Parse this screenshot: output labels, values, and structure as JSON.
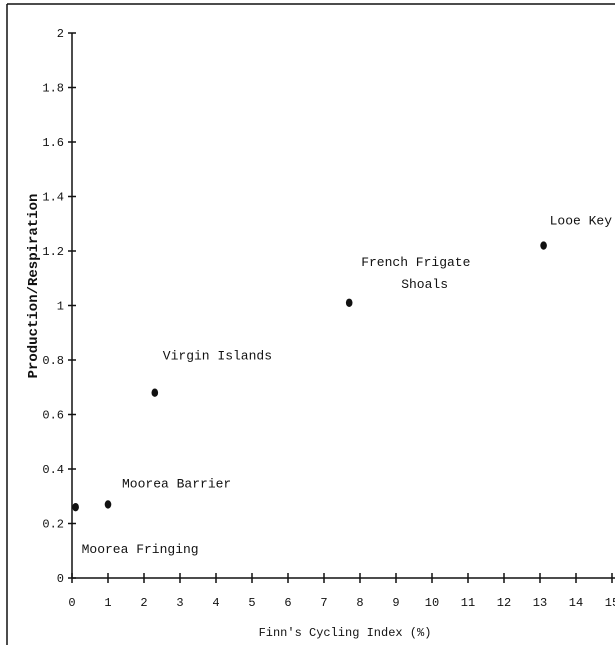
{
  "chart_data": {
    "type": "scatter",
    "title": "",
    "xlabel": "Finn's Cycling Index (%)",
    "ylabel": "Production/Respiration",
    "xlim": [
      0,
      15
    ],
    "ylim": [
      0,
      2
    ],
    "x_ticks": [
      "0",
      "1",
      "2",
      "3",
      "4",
      "5",
      "6",
      "7",
      "8",
      "9",
      "10",
      "11",
      "12",
      "13",
      "14",
      "15"
    ],
    "y_ticks": [
      "0",
      "0.2",
      "0.4",
      "0.6",
      "0.8",
      "1",
      "1.2",
      "1.4",
      "1.6",
      "1.8",
      "2"
    ],
    "points": [
      {
        "x": 0.1,
        "y": 0.26,
        "label": "Moorea Fringing"
      },
      {
        "x": 1.0,
        "y": 0.27,
        "label": "Moorea Barrier"
      },
      {
        "x": 2.3,
        "y": 0.68,
        "label": "Virgin Islands"
      },
      {
        "x": 7.7,
        "y": 1.01,
        "label_lines": [
          "French Frigate",
          "Shoals"
        ]
      },
      {
        "x": 13.1,
        "y": 1.22,
        "label": "Looe Key"
      }
    ],
    "grid": false,
    "legend": "none"
  }
}
